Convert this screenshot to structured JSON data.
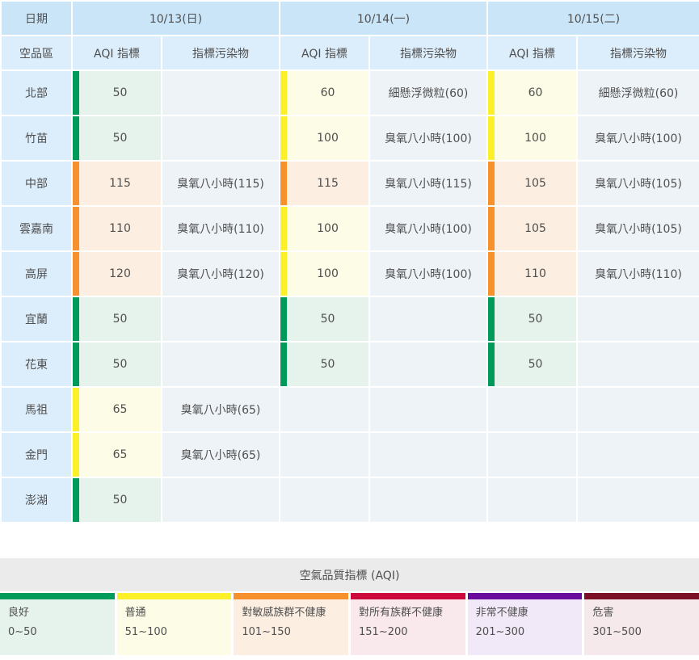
{
  "table": {
    "corner_date_label": "日期",
    "corner_region_label": "空品區",
    "days": [
      "10/13(日)",
      "10/14(一)",
      "10/15(二)"
    ],
    "sub_aqi_label": "AQI 指標",
    "sub_pollutant_label": "指標污染物",
    "rows": [
      {
        "region": "北部",
        "cells": [
          {
            "aqi": "50",
            "level": "good",
            "pollutant": ""
          },
          {
            "aqi": "60",
            "level": "moderate",
            "pollutant": "細懸浮微粒(60)"
          },
          {
            "aqi": "60",
            "level": "moderate",
            "pollutant": "細懸浮微粒(60)"
          }
        ]
      },
      {
        "region": "竹苗",
        "cells": [
          {
            "aqi": "50",
            "level": "good",
            "pollutant": ""
          },
          {
            "aqi": "100",
            "level": "moderate",
            "pollutant": "臭氧八小時(100)"
          },
          {
            "aqi": "100",
            "level": "moderate",
            "pollutant": "臭氧八小時(100)"
          }
        ]
      },
      {
        "region": "中部",
        "cells": [
          {
            "aqi": "115",
            "level": "usg",
            "pollutant": "臭氧八小時(115)"
          },
          {
            "aqi": "115",
            "level": "usg",
            "pollutant": "臭氧八小時(115)"
          },
          {
            "aqi": "105",
            "level": "usg",
            "pollutant": "臭氧八小時(105)"
          }
        ]
      },
      {
        "region": "雲嘉南",
        "cells": [
          {
            "aqi": "110",
            "level": "usg",
            "pollutant": "臭氧八小時(110)"
          },
          {
            "aqi": "100",
            "level": "moderate",
            "pollutant": "臭氧八小時(100)"
          },
          {
            "aqi": "105",
            "level": "usg",
            "pollutant": "臭氧八小時(105)"
          }
        ]
      },
      {
        "region": "高屏",
        "cells": [
          {
            "aqi": "120",
            "level": "usg",
            "pollutant": "臭氧八小時(120)"
          },
          {
            "aqi": "100",
            "level": "moderate",
            "pollutant": "臭氧八小時(100)"
          },
          {
            "aqi": "110",
            "level": "usg",
            "pollutant": "臭氧八小時(110)"
          }
        ]
      },
      {
        "region": "宜蘭",
        "cells": [
          {
            "aqi": "50",
            "level": "good",
            "pollutant": ""
          },
          {
            "aqi": "50",
            "level": "good",
            "pollutant": ""
          },
          {
            "aqi": "50",
            "level": "good",
            "pollutant": ""
          }
        ]
      },
      {
        "region": "花東",
        "cells": [
          {
            "aqi": "50",
            "level": "good",
            "pollutant": ""
          },
          {
            "aqi": "50",
            "level": "good",
            "pollutant": ""
          },
          {
            "aqi": "50",
            "level": "good",
            "pollutant": ""
          }
        ]
      },
      {
        "region": "馬祖",
        "cells": [
          {
            "aqi": "65",
            "level": "moderate",
            "pollutant": "臭氧八小時(65)"
          },
          {
            "aqi": "",
            "level": null,
            "pollutant": ""
          },
          {
            "aqi": "",
            "level": null,
            "pollutant": ""
          }
        ]
      },
      {
        "region": "金門",
        "cells": [
          {
            "aqi": "65",
            "level": "moderate",
            "pollutant": "臭氧八小時(65)"
          },
          {
            "aqi": "",
            "level": null,
            "pollutant": ""
          },
          {
            "aqi": "",
            "level": null,
            "pollutant": ""
          }
        ]
      },
      {
        "region": "澎湖",
        "cells": [
          {
            "aqi": "50",
            "level": "good",
            "pollutant": ""
          },
          {
            "aqi": "",
            "level": null,
            "pollutant": ""
          },
          {
            "aqi": "",
            "level": null,
            "pollutant": ""
          }
        ]
      }
    ]
  },
  "legend": {
    "title": "空氣品質指標 (AQI)",
    "items": [
      {
        "label": "良好",
        "range": "0~50",
        "level": "good"
      },
      {
        "label": "普通",
        "range": "51~100",
        "level": "moderate"
      },
      {
        "label": "對敏感族群不健康",
        "range": "101~150",
        "level": "usg"
      },
      {
        "label": "對所有族群不健康",
        "range": "151~200",
        "level": "unhealthy"
      },
      {
        "label": "非常不健康",
        "range": "201~300",
        "level": "very_unhealthy"
      },
      {
        "label": "危害",
        "range": "301~500",
        "level": "hazardous"
      }
    ]
  },
  "colors": {
    "good": {
      "bar": "#009a5b",
      "bg": "#e6f2ec"
    },
    "moderate": {
      "bar": "#fbf02a",
      "bg": "#fdfce6"
    },
    "usg": {
      "bar": "#f7912d",
      "bg": "#fcefe2"
    },
    "unhealthy": {
      "bar": "#cc0a3c",
      "bg": "#f9e8ec"
    },
    "very_unhealthy": {
      "bar": "#6a0d9c",
      "bg": "#f1e9f7"
    },
    "hazardous": {
      "bar": "#7d0e27",
      "bg": "#f5e9ec"
    },
    "empty_cell": "#eef3f8",
    "header_dark": "#cbe5f8",
    "header_light": "#dcedfb"
  }
}
